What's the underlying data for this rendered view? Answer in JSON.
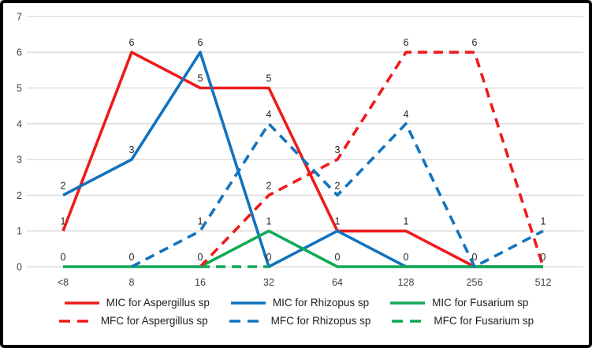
{
  "chart_data": {
    "type": "line",
    "title": "",
    "xlabel": "",
    "ylabel": "",
    "categories": [
      "<8",
      "8",
      "16",
      "32",
      "64",
      "128",
      "256",
      "512"
    ],
    "y_axis": {
      "min": 0,
      "max": 7,
      "step": 1,
      "ticks": [
        "0",
        "1",
        "2",
        "3",
        "4",
        "5",
        "6",
        "7"
      ]
    },
    "grid": "horizontal-only",
    "legend_position": "bottom-two-rows",
    "colors": {
      "red": "#EE1B1B",
      "blue": "#1273BE",
      "green": "#10A957",
      "gridline": "#D9D9D9",
      "axis_text": "#3F3F3F",
      "data_label_text": "#262626"
    },
    "series": [
      {
        "name": "MIC for Aspergillus sp",
        "color_key": "red",
        "style": "solid",
        "values": [
          1,
          6,
          5,
          5,
          1,
          1,
          0,
          0
        ]
      },
      {
        "name": "MIC for Rhizopus sp",
        "color_key": "blue",
        "style": "solid",
        "values": [
          2,
          3,
          6,
          0,
          1,
          0,
          0,
          0
        ]
      },
      {
        "name": "MIC for Fusarium sp",
        "color_key": "green",
        "style": "solid",
        "values": [
          0,
          0,
          0,
          1,
          0,
          0,
          0,
          0
        ]
      },
      {
        "name": "MFC for Aspergillus sp",
        "color_key": "red",
        "style": "dashed",
        "values": [
          null,
          null,
          0,
          2,
          3,
          6,
          6,
          0
        ]
      },
      {
        "name": "MFC for Rhizopus sp",
        "color_key": "blue",
        "style": "dashed",
        "values": [
          null,
          0,
          1,
          4,
          2,
          4,
          0,
          1
        ]
      },
      {
        "name": "MFC for Fusarium sp",
        "color_key": "green",
        "style": "dashed",
        "values": [
          null,
          null,
          0,
          0,
          null,
          null,
          null,
          null
        ]
      }
    ],
    "data_labels_visible": true
  }
}
